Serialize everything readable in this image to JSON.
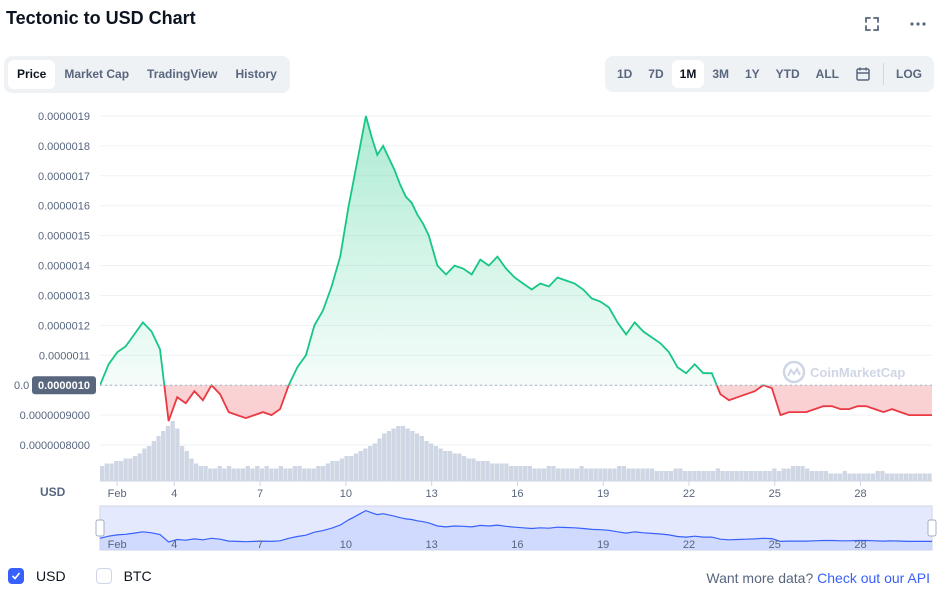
{
  "header": {
    "title": "Tectonic to USD Chart"
  },
  "icons": {
    "fullscreen": "fullscreen-icon",
    "more": "more-icon",
    "calendar": "calendar-icon"
  },
  "tabs": [
    {
      "label": "Price",
      "active": true
    },
    {
      "label": "Market Cap",
      "active": false
    },
    {
      "label": "TradingView",
      "active": false
    },
    {
      "label": "History",
      "active": false
    }
  ],
  "ranges": [
    {
      "label": "1D",
      "active": false
    },
    {
      "label": "7D",
      "active": false
    },
    {
      "label": "1M",
      "active": true
    },
    {
      "label": "3M",
      "active": false
    },
    {
      "label": "1Y",
      "active": false
    },
    {
      "label": "YTD",
      "active": false
    },
    {
      "label": "ALL",
      "active": false
    }
  ],
  "log_label": "LOG",
  "watermark": "CoinMarketCap",
  "colors": {
    "up": "#16c784",
    "down": "#ea3943",
    "brush": "#3861fb",
    "volume": "#cfd6e4",
    "accent": "#3861fb"
  },
  "chart_data": {
    "type": "area",
    "ylabel": "USD",
    "reference_value": "0.0000010",
    "ylim": [
      7.5e-07,
      1.92e-06
    ],
    "y_ticks": [
      "0.0000019",
      "0.0000018",
      "0.0000017",
      "0.0000016",
      "0.0000015",
      "0.0000014",
      "0.0000013",
      "0.0000012",
      "0.0000011",
      "0.0000010",
      "0.0000009000",
      "0.0000008000"
    ],
    "x_ticks": [
      "Feb",
      "4",
      "7",
      "10",
      "13",
      "16",
      "19",
      "22",
      "25",
      "28"
    ],
    "x_range_days": [
      -0.6,
      28.5
    ],
    "series": [
      {
        "x": [
          -0.6,
          -0.3,
          0,
          0.3,
          0.6,
          0.9,
          1.2,
          1.5,
          1.8,
          2.1,
          2.4,
          2.7,
          3.0,
          3.3,
          3.6,
          3.9,
          4.2,
          4.5,
          4.8,
          5.1,
          5.4,
          5.7,
          6.0,
          6.3,
          6.6,
          6.9,
          7.2,
          7.5,
          7.8,
          8.1,
          8.3,
          8.5,
          8.7,
          8.9,
          9.1,
          9.3,
          9.5,
          9.7,
          9.9,
          10.1,
          10.3,
          10.5,
          10.7,
          10.9,
          11.2,
          11.5,
          11.8,
          12.1,
          12.4,
          12.7,
          13.0,
          13.3,
          13.6,
          13.9,
          14.2,
          14.5,
          14.8,
          15.1,
          15.4,
          15.7,
          16.0,
          16.3,
          16.6,
          16.9,
          17.2,
          17.5,
          17.8,
          18.1,
          18.4,
          18.7,
          19.0,
          19.3,
          19.6,
          19.9,
          20.2,
          20.5,
          20.8,
          21.1,
          21.4,
          21.7,
          22.0,
          22.3,
          22.6,
          22.9,
          23.2,
          23.5,
          23.8,
          24.1,
          24.4,
          24.7,
          25.0,
          25.3,
          25.6,
          25.9,
          26.2,
          26.5,
          26.8,
          27.1,
          27.4,
          27.7,
          28.0,
          28.3,
          28.5
        ],
        "y": [
          1e-06,
          1.07e-06,
          1.11e-06,
          1.13e-06,
          1.17e-06,
          1.21e-06,
          1.18e-06,
          1.12e-06,
          8.8e-07,
          9.6e-07,
          9.4e-07,
          9.8e-07,
          9.5e-07,
          1e-06,
          9.7e-07,
          9.1e-07,
          9e-07,
          8.9e-07,
          9e-07,
          9.1e-07,
          9e-07,
          9.2e-07,
          1e-06,
          1.06e-06,
          1.1e-06,
          1.2e-06,
          1.25e-06,
          1.33e-06,
          1.43e-06,
          1.6e-06,
          1.7e-06,
          1.8e-06,
          1.9e-06,
          1.83e-06,
          1.77e-06,
          1.8e-06,
          1.76e-06,
          1.72e-06,
          1.67e-06,
          1.63e-06,
          1.61e-06,
          1.57e-06,
          1.54e-06,
          1.5e-06,
          1.4e-06,
          1.37e-06,
          1.4e-06,
          1.39e-06,
          1.37e-06,
          1.42e-06,
          1.4e-06,
          1.43e-06,
          1.39e-06,
          1.36e-06,
          1.34e-06,
          1.32e-06,
          1.34e-06,
          1.33e-06,
          1.36e-06,
          1.35e-06,
          1.34e-06,
          1.32e-06,
          1.29e-06,
          1.28e-06,
          1.26e-06,
          1.21e-06,
          1.17e-06,
          1.21e-06,
          1.18e-06,
          1.16e-06,
          1.14e-06,
          1.11e-06,
          1.06e-06,
          1.04e-06,
          1.07e-06,
          1.04e-06,
          1.04e-06,
          9.7e-07,
          9.5e-07,
          9.6e-07,
          9.7e-07,
          9.8e-07,
          1e-06,
          9.9e-07,
          9e-07,
          9.1e-07,
          9.1e-07,
          9.1e-07,
          9.2e-07,
          9.3e-07,
          9.3e-07,
          9.2e-07,
          9.2e-07,
          9.3e-07,
          9.3e-07,
          9.2e-07,
          9.1e-07,
          9.2e-07,
          9.1e-07,
          9e-07,
          9e-07,
          9e-07,
          9e-07
        ]
      }
    ],
    "volume": [
      6,
      7,
      7,
      8,
      8,
      9,
      9,
      10,
      11,
      13,
      14,
      16,
      18,
      20,
      22,
      24,
      21,
      14,
      12,
      9,
      7,
      6,
      6,
      5,
      5,
      6,
      5,
      6,
      5,
      5,
      5,
      6,
      5,
      6,
      5,
      6,
      5,
      5,
      6,
      5,
      5,
      6,
      6,
      5,
      5,
      5,
      6,
      6,
      7,
      8,
      8,
      9,
      10,
      10,
      11,
      12,
      13,
      14,
      15,
      17,
      19,
      20,
      21,
      22,
      22,
      21,
      20,
      19,
      18,
      16,
      15,
      14,
      13,
      12,
      12,
      11,
      11,
      10,
      9,
      9,
      8,
      8,
      8,
      7,
      7,
      7,
      7,
      6,
      6,
      6,
      6,
      6,
      5,
      5,
      5,
      6,
      6,
      5,
      5,
      5,
      5,
      5,
      6,
      5,
      5,
      5,
      5,
      5,
      5,
      5,
      6,
      6,
      5,
      5,
      5,
      5,
      5,
      5,
      4,
      4,
      4,
      4,
      5,
      5,
      4,
      4,
      4,
      4,
      4,
      4,
      4,
      5,
      4,
      4,
      4,
      4,
      4,
      4,
      4,
      4,
      4,
      4,
      4,
      5,
      4,
      5,
      5,
      6,
      6,
      6,
      5,
      4,
      4,
      4,
      4,
      3,
      3,
      3,
      4,
      3,
      3,
      3,
      3,
      3,
      3,
      4,
      4,
      3,
      3,
      3,
      3,
      3,
      3,
      3,
      3,
      3,
      3
    ]
  },
  "legend": [
    {
      "label": "USD",
      "checked": true
    },
    {
      "label": "BTC",
      "checked": false
    }
  ],
  "footer": {
    "prompt": "Want more data?",
    "link": "Check out our API"
  }
}
